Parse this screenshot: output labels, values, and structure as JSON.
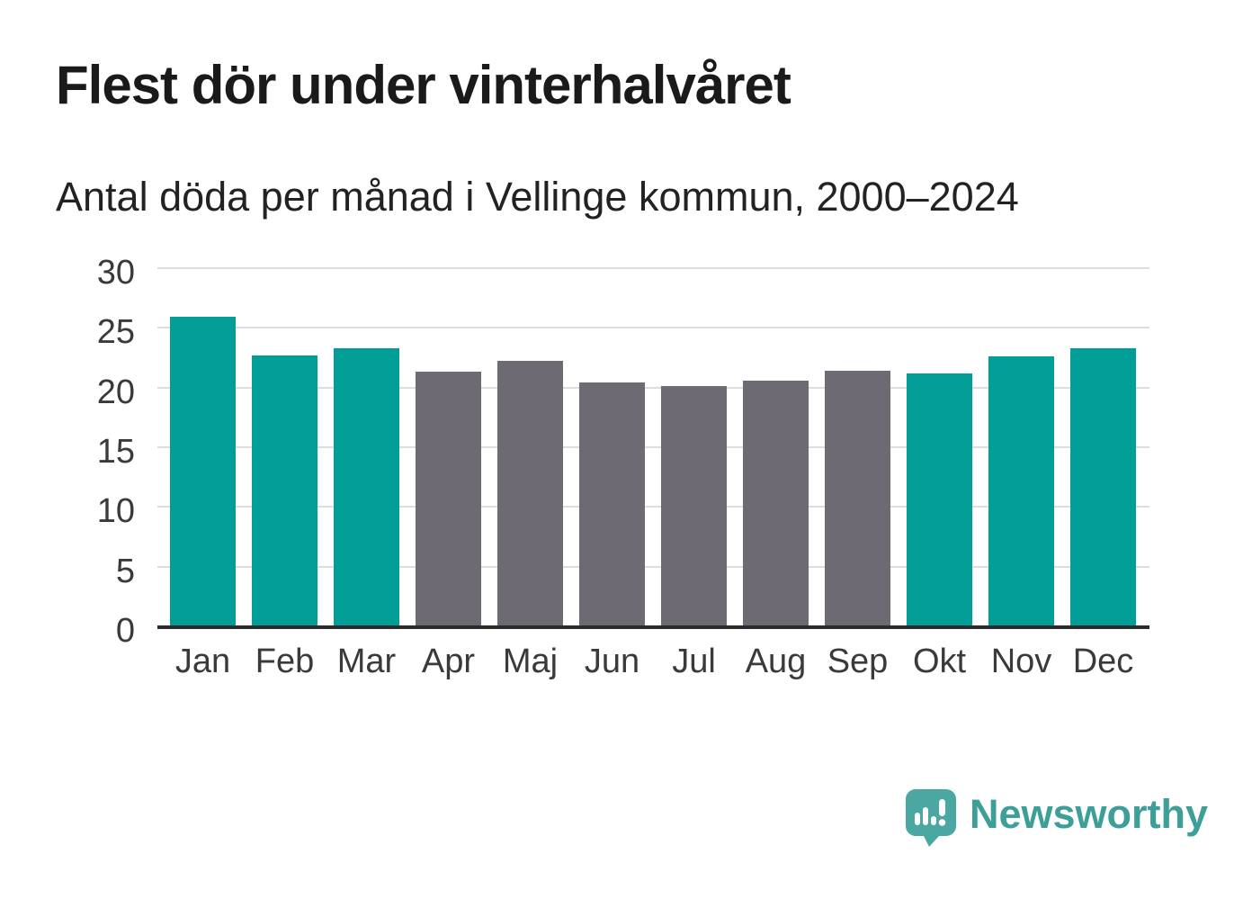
{
  "chart_data": {
    "type": "bar",
    "title": "Flest dör under vinterhalvåret",
    "subtitle": "Antal döda per månad i Vellinge kommun, 2000–2024",
    "categories": [
      "Jan",
      "Feb",
      "Mar",
      "Apr",
      "Maj",
      "Jun",
      "Jul",
      "Aug",
      "Sep",
      "Okt",
      "Nov",
      "Dec"
    ],
    "values": [
      25.9,
      22.7,
      23.3,
      21.3,
      22.2,
      20.4,
      20.1,
      20.6,
      21.4,
      21.2,
      22.6,
      23.3
    ],
    "groups": [
      "winter",
      "winter",
      "winter",
      "summer",
      "summer",
      "summer",
      "summer",
      "summer",
      "summer",
      "winter",
      "winter",
      "winter"
    ],
    "xlabel": "",
    "ylabel": "",
    "ylim": [
      0,
      30
    ],
    "yticks": [
      0,
      5,
      10,
      15,
      20,
      25,
      30
    ],
    "grid": true,
    "legend": "none"
  },
  "colors": {
    "winter_bar": "#009e96",
    "summer_bar": "#6d6a74",
    "title_text": "#1a1a1a",
    "axis_text": "#3a3a3a",
    "gridline": "#dddddd",
    "baseline": "#2b2b2b",
    "brand": "#3e9f99"
  },
  "brand": {
    "name": "Newsworthy",
    "icon": "bar-chart-speech-bubble-icon"
  }
}
